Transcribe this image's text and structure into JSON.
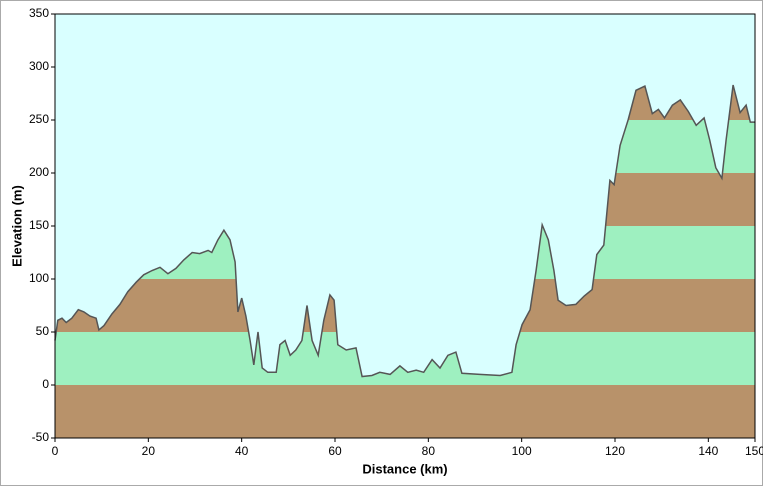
{
  "chart_data": {
    "type": "elevation-profile",
    "xlabel": "Distance   (km)",
    "ylabel": "Elevation (m)",
    "x": [
      0,
      0.6,
      1.5,
      2.4,
      3.6,
      5,
      6.2,
      7.5,
      8.8,
      9.4,
      10.5,
      12.2,
      13.9,
      15.6,
      17.4,
      19,
      20.8,
      22.5,
      24.2,
      25.9,
      27.6,
      29.4,
      31,
      32.8,
      33.6,
      34.9,
      36.2,
      37.5,
      38.6,
      39.2,
      40,
      40.9,
      41.8,
      42.6,
      43.5,
      44.4,
      45.6,
      47.4,
      48.2,
      49.3,
      50.4,
      51.6,
      52.9,
      54,
      55.1,
      56.4,
      57.6,
      58.9,
      59.8,
      60.6,
      62.4,
      64.5,
      65.8,
      67.9,
      69.6,
      71.8,
      73.9,
      75.6,
      77.4,
      79,
      80.8,
      82.5,
      84.2,
      85.9,
      87.2,
      91,
      95.4,
      97.9,
      98.8,
      100.1,
      101.8,
      103.1,
      104.4,
      105.7,
      106.9,
      107.8,
      109.5,
      111.6,
      113.4,
      115.1,
      116.1,
      117.6,
      118.9,
      119.8,
      121.1,
      122.8,
      124.5,
      126.4,
      128,
      129.3,
      130.6,
      132.3,
      134,
      135.7,
      137.4,
      139.1,
      140.3,
      141.6,
      142.9,
      143.8,
      145.3,
      146.8,
      148.1,
      149,
      150
    ],
    "values": [
      42,
      61,
      63,
      59,
      63,
      71,
      69,
      65,
      63,
      52,
      56,
      67,
      76,
      88,
      97,
      104,
      108,
      111,
      105,
      110,
      118,
      125,
      124,
      127,
      125,
      137,
      146,
      137,
      116,
      69,
      82,
      65,
      42,
      19,
      50,
      16,
      12,
      12,
      38,
      42,
      28,
      33,
      42,
      75,
      42,
      28,
      61,
      85,
      80,
      38,
      33,
      35,
      8,
      9,
      12,
      10,
      18,
      12,
      14,
      12,
      24,
      16,
      28,
      31,
      11,
      10,
      9,
      12,
      38,
      57,
      71,
      108,
      151,
      137,
      108,
      80,
      75,
      76,
      84,
      90,
      123,
      132,
      193,
      189,
      226,
      250,
      278,
      282,
      256,
      260,
      252,
      264,
      269,
      258,
      245,
      252,
      231,
      205,
      195,
      231,
      283,
      257,
      264,
      248,
      248
    ],
    "xlim": [
      0,
      150
    ],
    "xticks": [
      0,
      20,
      40,
      60,
      80,
      100,
      120,
      140,
      150
    ],
    "ylim": [
      -50,
      350
    ],
    "yticks": [
      -50,
      0,
      50,
      100,
      150,
      200,
      250,
      300,
      350
    ],
    "band_colors": [
      "#b8926a",
      "#9ef0c0"
    ],
    "line_color": "#555555",
    "background": "#d9ffff"
  }
}
